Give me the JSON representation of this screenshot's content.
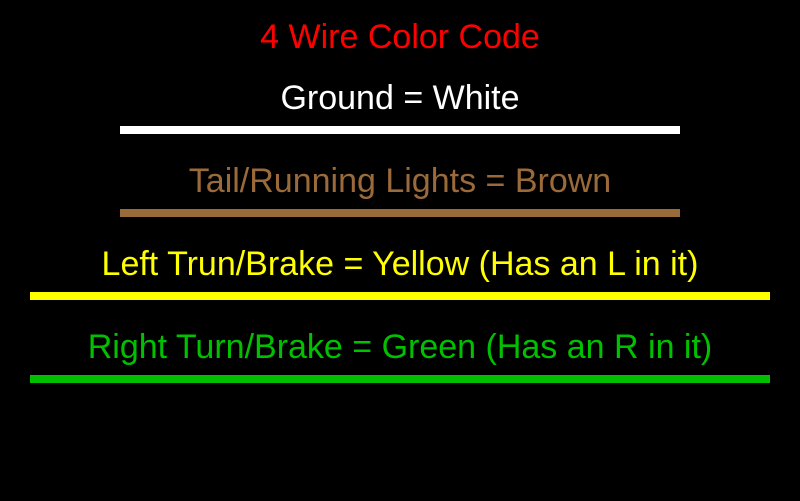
{
  "title": {
    "text": "4 Wire Color Code",
    "color": "#ff0000",
    "fontsize": 34
  },
  "background_color": "#000000",
  "rows": [
    {
      "label": "Ground = White",
      "text_color": "#ffffff",
      "line_color": "#ffffff",
      "line_width": 560,
      "line_height": 8
    },
    {
      "label": "Tail/Running Lights = Brown",
      "text_color": "#9b6a3a",
      "line_color": "#9b6a3a",
      "line_width": 560,
      "line_height": 8
    },
    {
      "label": "Left Trun/Brake = Yellow (Has an L in it)",
      "text_color": "#ffff00",
      "line_color": "#ffff00",
      "line_width": 740,
      "line_height": 8
    },
    {
      "label": "Right Turn/Brake = Green (Has an R in it)",
      "text_color": "#00c000",
      "line_color": "#00c000",
      "line_width": 740,
      "line_height": 8
    }
  ]
}
